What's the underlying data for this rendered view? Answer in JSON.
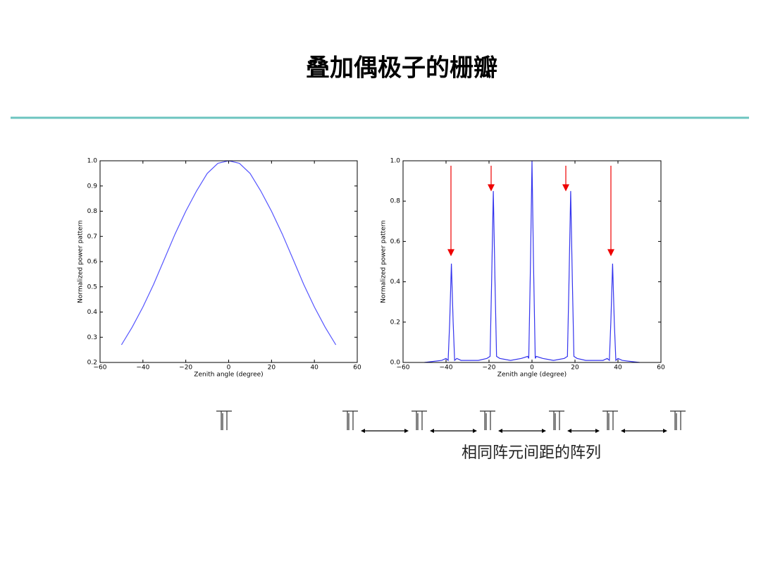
{
  "title": "叠加偶极子的栅瓣",
  "caption": "相同阵元间距的阵列",
  "chart_data": [
    {
      "type": "line",
      "xlabel": "Zenith angle (degree)",
      "ylabel": "Normalized power pattern",
      "color": "#5555ff",
      "x": [
        -50,
        -45,
        -40,
        -35,
        -30,
        -25,
        -20,
        -15,
        -10,
        -5,
        0,
        5,
        10,
        15,
        20,
        25,
        30,
        35,
        40,
        45,
        50
      ],
      "values": [
        0.27,
        0.34,
        0.42,
        0.51,
        0.61,
        0.71,
        0.8,
        0.88,
        0.95,
        0.99,
        1.0,
        0.99,
        0.95,
        0.88,
        0.8,
        0.71,
        0.61,
        0.51,
        0.42,
        0.34,
        0.27
      ],
      "xlim": [
        -60,
        60
      ],
      "xticks": [
        {
          "value": -60,
          "label": "−60"
        },
        {
          "value": -40,
          "label": "−40"
        },
        {
          "value": -20,
          "label": "−20"
        },
        0,
        20,
        40,
        60
      ],
      "ylim": [
        0.2,
        1.0
      ],
      "yticks": [
        0.2,
        0.3,
        0.4,
        0.5,
        0.6,
        0.7,
        0.8,
        0.9,
        {
          "value": 1.0,
          "label": "1.0"
        }
      ]
    },
    {
      "type": "line",
      "xlabel": "Zenith angle (degree)",
      "ylabel": "Normalized power pattern",
      "color": "#3333ee",
      "x": [
        -50,
        -42,
        -40,
        -39,
        -38.3,
        -37.5,
        -36.7,
        -36,
        -35,
        -33,
        -25,
        -21,
        -19.5,
        -18.8,
        -18,
        -17.2,
        -16.5,
        -15,
        -10,
        -5,
        -2,
        -1.5,
        -0.7,
        0,
        0.7,
        1.5,
        2,
        5,
        10,
        15,
        16.5,
        17.2,
        18,
        18.8,
        19.5,
        21,
        25,
        33,
        35,
        36,
        36.7,
        37.5,
        38.3,
        39,
        40,
        42,
        50
      ],
      "values": [
        0.0,
        0.01,
        0.02,
        0.01,
        0.2,
        0.49,
        0.2,
        0.01,
        0.02,
        0.01,
        0.01,
        0.02,
        0.03,
        0.4,
        0.85,
        0.4,
        0.03,
        0.02,
        0.01,
        0.02,
        0.03,
        0.02,
        0.5,
        1.0,
        0.5,
        0.02,
        0.03,
        0.02,
        0.01,
        0.02,
        0.03,
        0.4,
        0.85,
        0.4,
        0.03,
        0.02,
        0.01,
        0.01,
        0.02,
        0.01,
        0.2,
        0.49,
        0.2,
        0.01,
        0.02,
        0.01,
        0.0
      ],
      "xlim": [
        -60,
        60
      ],
      "xticks": [
        {
          "value": -60,
          "label": "−60"
        },
        {
          "value": -40,
          "label": "−40"
        },
        {
          "value": -20,
          "label": "−20"
        },
        0,
        20,
        40,
        60
      ],
      "ylim": [
        0.0,
        1.0
      ],
      "yticks": [
        {
          "value": 0.0,
          "label": "0.0"
        },
        0.2,
        0.4,
        0.6,
        0.8,
        {
          "value": 1.0,
          "label": "1.0"
        }
      ]
    }
  ]
}
